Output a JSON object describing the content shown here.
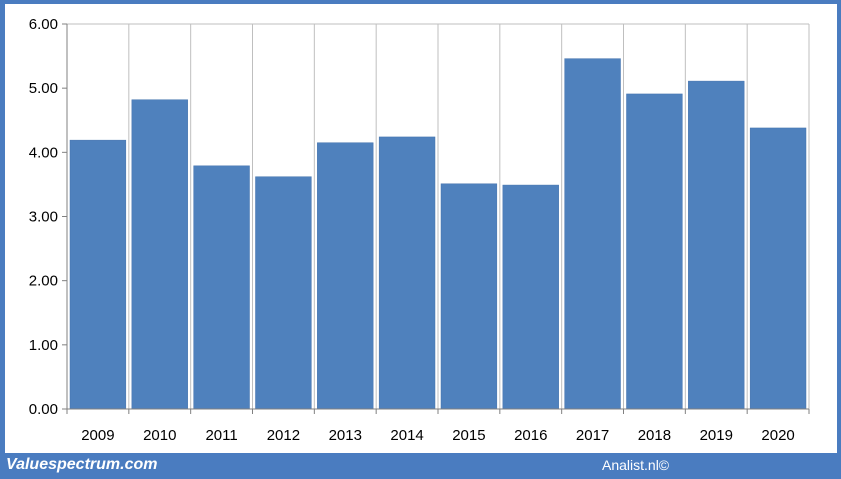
{
  "chart_data": {
    "type": "bar",
    "categories": [
      "2009",
      "2010",
      "2011",
      "2012",
      "2013",
      "2014",
      "2015",
      "2016",
      "2017",
      "2018",
      "2019",
      "2020"
    ],
    "values": [
      4.19,
      4.82,
      3.79,
      3.62,
      4.15,
      4.24,
      3.51,
      3.49,
      5.46,
      4.91,
      5.11,
      4.38
    ],
    "yticks": [
      "0.00",
      "1.00",
      "2.00",
      "3.00",
      "4.00",
      "5.00",
      "6.00"
    ],
    "ylim": [
      0,
      6
    ],
    "grid": "vertical",
    "bar_color": "#4f81bd",
    "title": "",
    "xlabel": "",
    "ylabel": ""
  },
  "footer": {
    "left": "Valuespectrum.com",
    "right": "Analist.nl©"
  },
  "colors": {
    "frame": "#4a7cc0",
    "background": "#ffffff",
    "grid": "#bfbfbf"
  }
}
